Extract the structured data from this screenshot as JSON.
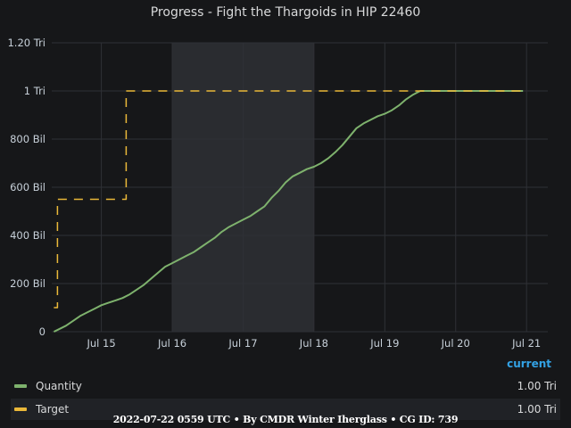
{
  "chart_data": {
    "type": "line",
    "title": "Progress - Fight the Thargoids in HIP 22460",
    "xlabel": "",
    "ylabel": "",
    "x_unit": "days (July 2022)",
    "xlim": [
      14.3,
      21.3
    ],
    "ylim": [
      0,
      1.2
    ],
    "y_tick_values": [
      0,
      0.2,
      0.4,
      0.6,
      0.8,
      1.0,
      1.2
    ],
    "y_tick_labels": [
      "0",
      "200 Bil",
      "400 Bil",
      "600 Bil",
      "800 Bil",
      "1 Tri",
      "1.20 Tri"
    ],
    "x_tick_values": [
      15,
      16,
      17,
      18,
      19,
      20,
      21
    ],
    "x_tick_labels": [
      "Jul 15",
      "Jul 16",
      "Jul 17",
      "Jul 18",
      "Jul 19",
      "Jul 20",
      "Jul 21"
    ],
    "grid": true,
    "shaded_region": [
      16,
      18
    ],
    "legend_position": "bottom",
    "series": [
      {
        "name": "Quantity",
        "color": "#7eb26d",
        "style": "solid",
        "x": [
          14.33,
          14.4,
          14.5,
          14.6,
          14.7,
          14.8,
          14.9,
          15.0,
          15.1,
          15.2,
          15.3,
          15.4,
          15.5,
          15.6,
          15.7,
          15.8,
          15.9,
          16.0,
          16.1,
          16.2,
          16.3,
          16.4,
          16.5,
          16.6,
          16.7,
          16.8,
          16.9,
          17.0,
          17.1,
          17.2,
          17.3,
          17.4,
          17.5,
          17.6,
          17.7,
          17.8,
          17.9,
          18.0,
          18.1,
          18.2,
          18.3,
          18.4,
          18.5,
          18.6,
          18.7,
          18.8,
          18.9,
          19.0,
          19.1,
          19.2,
          19.3,
          19.4,
          19.5,
          19.6,
          19.7,
          19.8,
          19.9,
          20.0,
          20.3,
          20.6,
          20.95
        ],
        "values": [
          0.0,
          0.01,
          0.025,
          0.045,
          0.065,
          0.08,
          0.095,
          0.11,
          0.12,
          0.13,
          0.14,
          0.155,
          0.175,
          0.195,
          0.22,
          0.245,
          0.27,
          0.285,
          0.3,
          0.315,
          0.33,
          0.35,
          0.37,
          0.39,
          0.415,
          0.435,
          0.45,
          0.465,
          0.48,
          0.5,
          0.52,
          0.555,
          0.585,
          0.62,
          0.645,
          0.66,
          0.675,
          0.685,
          0.7,
          0.72,
          0.745,
          0.775,
          0.81,
          0.845,
          0.865,
          0.88,
          0.895,
          0.905,
          0.92,
          0.94,
          0.965,
          0.985,
          1.0,
          1.0,
          1.0,
          1.0,
          1.0,
          1.0,
          1.0,
          1.0,
          1.0
        ],
        "current": "1.00 Tri"
      },
      {
        "name": "Target",
        "color": "#eab839",
        "style": "dashed",
        "x": [
          14.33,
          14.38,
          14.38,
          15.35,
          15.35,
          21.0
        ],
        "values": [
          0.1,
          0.1,
          0.55,
          0.55,
          1.0,
          1.0
        ],
        "current": "1.00 Tri"
      }
    ]
  },
  "legend": {
    "header": "current"
  },
  "footer": "2022-07-22 0559 UTC • By CMDR Winter Iherglass • CG ID: 739"
}
